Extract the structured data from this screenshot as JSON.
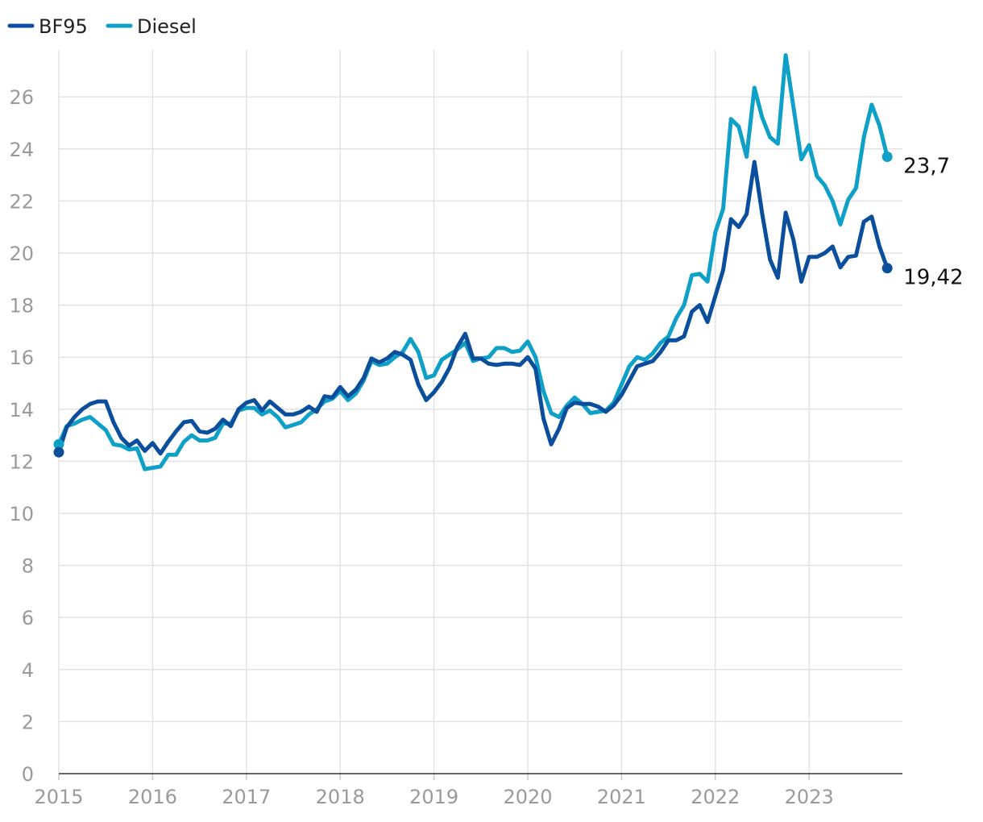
{
  "chart_data": {
    "type": "line",
    "title": "",
    "xlabel": "",
    "ylabel": "",
    "ylim": [
      0,
      27.6
    ],
    "yticks": [
      0,
      2,
      4,
      6,
      8,
      10,
      12,
      14,
      16,
      18,
      20,
      22,
      24,
      26
    ],
    "xlim": [
      2015,
      2024.0
    ],
    "xticks": [
      2015,
      2016,
      2017,
      2018,
      2019,
      2020,
      2021,
      2022,
      2023
    ],
    "grid": true,
    "legend_position": "top-left",
    "series": [
      {
        "name": "BF95",
        "color": "#0b4f9c",
        "end_label": "19,42",
        "values": [
          [
            2015.0,
            12.35
          ],
          [
            2015.083,
            13.3
          ],
          [
            2015.167,
            13.7
          ],
          [
            2015.25,
            14.0
          ],
          [
            2015.333,
            14.2
          ],
          [
            2015.417,
            14.3
          ],
          [
            2015.5,
            14.3
          ],
          [
            2015.583,
            13.5
          ],
          [
            2015.667,
            12.9
          ],
          [
            2015.75,
            12.6
          ],
          [
            2015.833,
            12.8
          ],
          [
            2015.917,
            12.4
          ],
          [
            2016.0,
            12.7
          ],
          [
            2016.083,
            12.3
          ],
          [
            2016.167,
            12.75
          ],
          [
            2016.25,
            13.15
          ],
          [
            2016.333,
            13.5
          ],
          [
            2016.417,
            13.55
          ],
          [
            2016.5,
            13.15
          ],
          [
            2016.583,
            13.1
          ],
          [
            2016.667,
            13.25
          ],
          [
            2016.75,
            13.6
          ],
          [
            2016.833,
            13.35
          ],
          [
            2016.917,
            14.0
          ],
          [
            2017.0,
            14.25
          ],
          [
            2017.083,
            14.35
          ],
          [
            2017.167,
            13.95
          ],
          [
            2017.25,
            14.3
          ],
          [
            2017.333,
            14.05
          ],
          [
            2017.417,
            13.8
          ],
          [
            2017.5,
            13.8
          ],
          [
            2017.583,
            13.9
          ],
          [
            2017.667,
            14.1
          ],
          [
            2017.75,
            13.9
          ],
          [
            2017.833,
            14.5
          ],
          [
            2017.917,
            14.45
          ],
          [
            2018.0,
            14.85
          ],
          [
            2018.083,
            14.5
          ],
          [
            2018.167,
            14.75
          ],
          [
            2018.25,
            15.2
          ],
          [
            2018.333,
            15.95
          ],
          [
            2018.417,
            15.8
          ],
          [
            2018.5,
            15.95
          ],
          [
            2018.583,
            16.2
          ],
          [
            2018.667,
            16.1
          ],
          [
            2018.75,
            15.9
          ],
          [
            2018.833,
            14.95
          ],
          [
            2018.917,
            14.35
          ],
          [
            2019.0,
            14.65
          ],
          [
            2019.083,
            15.05
          ],
          [
            2019.167,
            15.6
          ],
          [
            2019.25,
            16.4
          ],
          [
            2019.333,
            16.9
          ],
          [
            2019.417,
            15.95
          ],
          [
            2019.5,
            15.95
          ],
          [
            2019.583,
            15.75
          ],
          [
            2019.667,
            15.7
          ],
          [
            2019.75,
            15.75
          ],
          [
            2019.833,
            15.75
          ],
          [
            2019.917,
            15.7
          ],
          [
            2020.0,
            16.0
          ],
          [
            2020.083,
            15.55
          ],
          [
            2020.167,
            13.65
          ],
          [
            2020.25,
            12.65
          ],
          [
            2020.333,
            13.25
          ],
          [
            2020.417,
            14.05
          ],
          [
            2020.5,
            14.25
          ],
          [
            2020.583,
            14.2
          ],
          [
            2020.667,
            14.2
          ],
          [
            2020.75,
            14.1
          ],
          [
            2020.833,
            13.9
          ],
          [
            2020.917,
            14.15
          ],
          [
            2021.0,
            14.55
          ],
          [
            2021.083,
            15.1
          ],
          [
            2021.167,
            15.65
          ],
          [
            2021.25,
            15.75
          ],
          [
            2021.333,
            15.85
          ],
          [
            2021.417,
            16.2
          ],
          [
            2021.5,
            16.65
          ],
          [
            2021.583,
            16.65
          ],
          [
            2021.667,
            16.8
          ],
          [
            2021.75,
            17.75
          ],
          [
            2021.833,
            18.0
          ],
          [
            2021.917,
            17.35
          ],
          [
            2022.0,
            18.35
          ],
          [
            2022.083,
            19.35
          ],
          [
            2022.167,
            21.3
          ],
          [
            2022.25,
            21.0
          ],
          [
            2022.333,
            21.5
          ],
          [
            2022.417,
            23.5
          ],
          [
            2022.5,
            21.5
          ],
          [
            2022.583,
            19.75
          ],
          [
            2022.667,
            19.05
          ],
          [
            2022.75,
            21.55
          ],
          [
            2022.833,
            20.5
          ],
          [
            2022.917,
            18.9
          ],
          [
            2023.0,
            19.85
          ],
          [
            2023.083,
            19.85
          ],
          [
            2023.167,
            20.0
          ],
          [
            2023.25,
            20.25
          ],
          [
            2023.333,
            19.45
          ],
          [
            2023.417,
            19.85
          ],
          [
            2023.5,
            19.9
          ],
          [
            2023.583,
            21.2
          ],
          [
            2023.667,
            21.4
          ],
          [
            2023.75,
            20.25
          ],
          [
            2023.833,
            19.42
          ]
        ]
      },
      {
        "name": "Diesel",
        "color": "#0fa0c7",
        "end_label": "23,7",
        "values": [
          [
            2015.0,
            12.65
          ],
          [
            2015.083,
            13.35
          ],
          [
            2015.167,
            13.45
          ],
          [
            2015.25,
            13.6
          ],
          [
            2015.333,
            13.7
          ],
          [
            2015.417,
            13.45
          ],
          [
            2015.5,
            13.2
          ],
          [
            2015.583,
            12.65
          ],
          [
            2015.667,
            12.6
          ],
          [
            2015.75,
            12.45
          ],
          [
            2015.833,
            12.5
          ],
          [
            2015.917,
            11.7
          ],
          [
            2016.0,
            11.75
          ],
          [
            2016.083,
            11.8
          ],
          [
            2016.167,
            12.25
          ],
          [
            2016.25,
            12.25
          ],
          [
            2016.333,
            12.75
          ],
          [
            2016.417,
            13.0
          ],
          [
            2016.5,
            12.8
          ],
          [
            2016.583,
            12.8
          ],
          [
            2016.667,
            12.9
          ],
          [
            2016.75,
            13.45
          ],
          [
            2016.833,
            13.45
          ],
          [
            2016.917,
            13.95
          ],
          [
            2017.0,
            14.05
          ],
          [
            2017.083,
            14.05
          ],
          [
            2017.167,
            13.8
          ],
          [
            2017.25,
            13.95
          ],
          [
            2017.333,
            13.7
          ],
          [
            2017.417,
            13.3
          ],
          [
            2017.5,
            13.4
          ],
          [
            2017.583,
            13.5
          ],
          [
            2017.667,
            13.8
          ],
          [
            2017.75,
            14.0
          ],
          [
            2017.833,
            14.3
          ],
          [
            2017.917,
            14.4
          ],
          [
            2018.0,
            14.7
          ],
          [
            2018.083,
            14.35
          ],
          [
            2018.167,
            14.6
          ],
          [
            2018.25,
            15.1
          ],
          [
            2018.333,
            15.85
          ],
          [
            2018.417,
            15.7
          ],
          [
            2018.5,
            15.75
          ],
          [
            2018.583,
            16.0
          ],
          [
            2018.667,
            16.2
          ],
          [
            2018.75,
            16.7
          ],
          [
            2018.833,
            16.2
          ],
          [
            2018.917,
            15.2
          ],
          [
            2019.0,
            15.3
          ],
          [
            2019.083,
            15.9
          ],
          [
            2019.167,
            16.1
          ],
          [
            2019.25,
            16.3
          ],
          [
            2019.333,
            16.55
          ],
          [
            2019.417,
            15.85
          ],
          [
            2019.5,
            15.95
          ],
          [
            2019.583,
            16.0
          ],
          [
            2019.667,
            16.35
          ],
          [
            2019.75,
            16.35
          ],
          [
            2019.833,
            16.2
          ],
          [
            2019.917,
            16.25
          ],
          [
            2020.0,
            16.6
          ],
          [
            2020.083,
            16.0
          ],
          [
            2020.167,
            14.7
          ],
          [
            2020.25,
            13.85
          ],
          [
            2020.333,
            13.7
          ],
          [
            2020.417,
            14.15
          ],
          [
            2020.5,
            14.45
          ],
          [
            2020.583,
            14.2
          ],
          [
            2020.667,
            13.85
          ],
          [
            2020.75,
            13.9
          ],
          [
            2020.833,
            13.95
          ],
          [
            2020.917,
            14.25
          ],
          [
            2021.0,
            14.95
          ],
          [
            2021.083,
            15.65
          ],
          [
            2021.167,
            16.0
          ],
          [
            2021.25,
            15.9
          ],
          [
            2021.333,
            16.15
          ],
          [
            2021.417,
            16.55
          ],
          [
            2021.5,
            16.8
          ],
          [
            2021.583,
            17.5
          ],
          [
            2021.667,
            18.0
          ],
          [
            2021.75,
            19.15
          ],
          [
            2021.833,
            19.2
          ],
          [
            2021.917,
            18.9
          ],
          [
            2022.0,
            20.8
          ],
          [
            2022.083,
            21.7
          ],
          [
            2022.167,
            25.15
          ],
          [
            2022.25,
            24.85
          ],
          [
            2022.333,
            23.7
          ],
          [
            2022.417,
            26.35
          ],
          [
            2022.5,
            25.2
          ],
          [
            2022.583,
            24.45
          ],
          [
            2022.667,
            24.2
          ],
          [
            2022.75,
            27.6
          ],
          [
            2022.833,
            25.6
          ],
          [
            2022.917,
            23.6
          ],
          [
            2023.0,
            24.15
          ],
          [
            2023.083,
            22.95
          ],
          [
            2023.167,
            22.6
          ],
          [
            2023.25,
            22.0
          ],
          [
            2023.333,
            21.1
          ],
          [
            2023.417,
            22.05
          ],
          [
            2023.5,
            22.5
          ],
          [
            2023.583,
            24.45
          ],
          [
            2023.667,
            25.7
          ],
          [
            2023.75,
            24.9
          ],
          [
            2023.833,
            23.7
          ]
        ]
      }
    ]
  }
}
